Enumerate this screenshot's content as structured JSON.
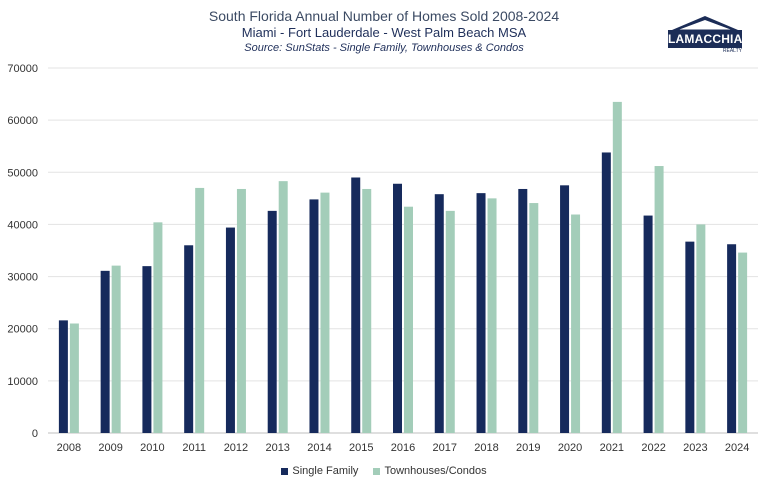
{
  "header": {
    "title": "South Florida Annual Number of Homes Sold 2008-2024",
    "subtitle": "Miami - Fort Lauderdale - West Palm Beach MSA",
    "source": "Source: SunStats - Single Family, Townhouses & Condos"
  },
  "logo": {
    "name": "LAMACCHIA",
    "sub": "REALTY",
    "icon": "house-roof-icon",
    "color": "#1c2d57"
  },
  "colors": {
    "single_family": "#162a5c",
    "townhouses": "#a3cdb9",
    "grid": "#e3e3e3"
  },
  "chart_data": {
    "type": "bar",
    "title": "South Florida Annual Number of Homes Sold 2008-2024",
    "categories": [
      "2008",
      "2009",
      "2010",
      "2011",
      "2012",
      "2013",
      "2014",
      "2015",
      "2016",
      "2017",
      "2018",
      "2019",
      "2020",
      "2021",
      "2022",
      "2023",
      "2024"
    ],
    "series": [
      {
        "name": "Single Family",
        "values": [
          21600,
          31100,
          32000,
          36000,
          39400,
          42600,
          44800,
          49000,
          47800,
          45800,
          46000,
          46800,
          47500,
          53800,
          41700,
          36700,
          36200
        ]
      },
      {
        "name": "Townhouses/Condos",
        "values": [
          21000,
          32100,
          40400,
          47000,
          46800,
          48300,
          46100,
          46800,
          43400,
          42600,
          45000,
          44100,
          41900,
          63500,
          51200,
          40000,
          34600
        ]
      }
    ],
    "ylim": [
      0,
      70000
    ],
    "yticks": [
      "0",
      "10000",
      "20000",
      "30000",
      "40000",
      "50000",
      "60000",
      "70000"
    ],
    "grid": true,
    "legend": "bottom"
  }
}
